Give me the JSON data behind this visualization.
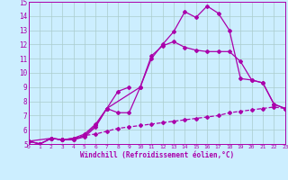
{
  "bg_color": "#cceeff",
  "grid_color": "#aacccc",
  "line_color": "#aa00aa",
  "xlabel": "Windchill (Refroidissement éolien,°C)",
  "xlim": [
    0,
    23
  ],
  "ylim": [
    5,
    15
  ],
  "yticks": [
    5,
    6,
    7,
    8,
    9,
    10,
    11,
    12,
    13,
    14,
    15
  ],
  "xticks": [
    0,
    1,
    2,
    3,
    4,
    5,
    6,
    7,
    8,
    9,
    10,
    11,
    12,
    13,
    14,
    15,
    16,
    17,
    18,
    19,
    20,
    21,
    22,
    23
  ],
  "line1_x": [
    0,
    1,
    2,
    3,
    4,
    5,
    6,
    7,
    8,
    9,
    10,
    11,
    12,
    13,
    14,
    15,
    16,
    17,
    18,
    19,
    20,
    21,
    22,
    23
  ],
  "line1_y": [
    5.2,
    5.0,
    5.4,
    5.3,
    5.3,
    5.5,
    6.2,
    7.5,
    7.2,
    7.2,
    9.0,
    11.0,
    12.0,
    12.9,
    14.3,
    13.9,
    14.7,
    14.2,
    13.0,
    9.6,
    9.5,
    9.3,
    7.8,
    7.5
  ],
  "line2_x": [
    0,
    1,
    2,
    3,
    4,
    5,
    6,
    7,
    8,
    9
  ],
  "line2_y": [
    5.2,
    5.0,
    5.4,
    5.3,
    5.4,
    5.7,
    6.4,
    7.5,
    8.7,
    9.0
  ],
  "line3_x": [
    0,
    2,
    3,
    4,
    5,
    6,
    7,
    10,
    11,
    12,
    13,
    14,
    15,
    16,
    17,
    18,
    19,
    20,
    21,
    22,
    23
  ],
  "line3_y": [
    5.2,
    5.4,
    5.3,
    5.3,
    5.6,
    6.3,
    7.5,
    9.0,
    11.2,
    11.9,
    12.2,
    11.8,
    11.6,
    11.5,
    11.5,
    11.5,
    10.8,
    9.5,
    9.3,
    7.8,
    7.5
  ],
  "dashed_x": [
    0,
    1,
    2,
    3,
    4,
    5,
    6,
    7,
    8,
    9,
    10,
    11,
    12,
    13,
    14,
    15,
    16,
    17,
    18,
    19,
    20,
    21,
    22,
    23
  ],
  "dashed_y": [
    5.2,
    5.0,
    5.4,
    5.3,
    5.4,
    5.6,
    5.7,
    5.9,
    6.1,
    6.2,
    6.3,
    6.4,
    6.5,
    6.6,
    6.7,
    6.8,
    6.9,
    7.0,
    7.2,
    7.3,
    7.4,
    7.5,
    7.6,
    7.5
  ]
}
